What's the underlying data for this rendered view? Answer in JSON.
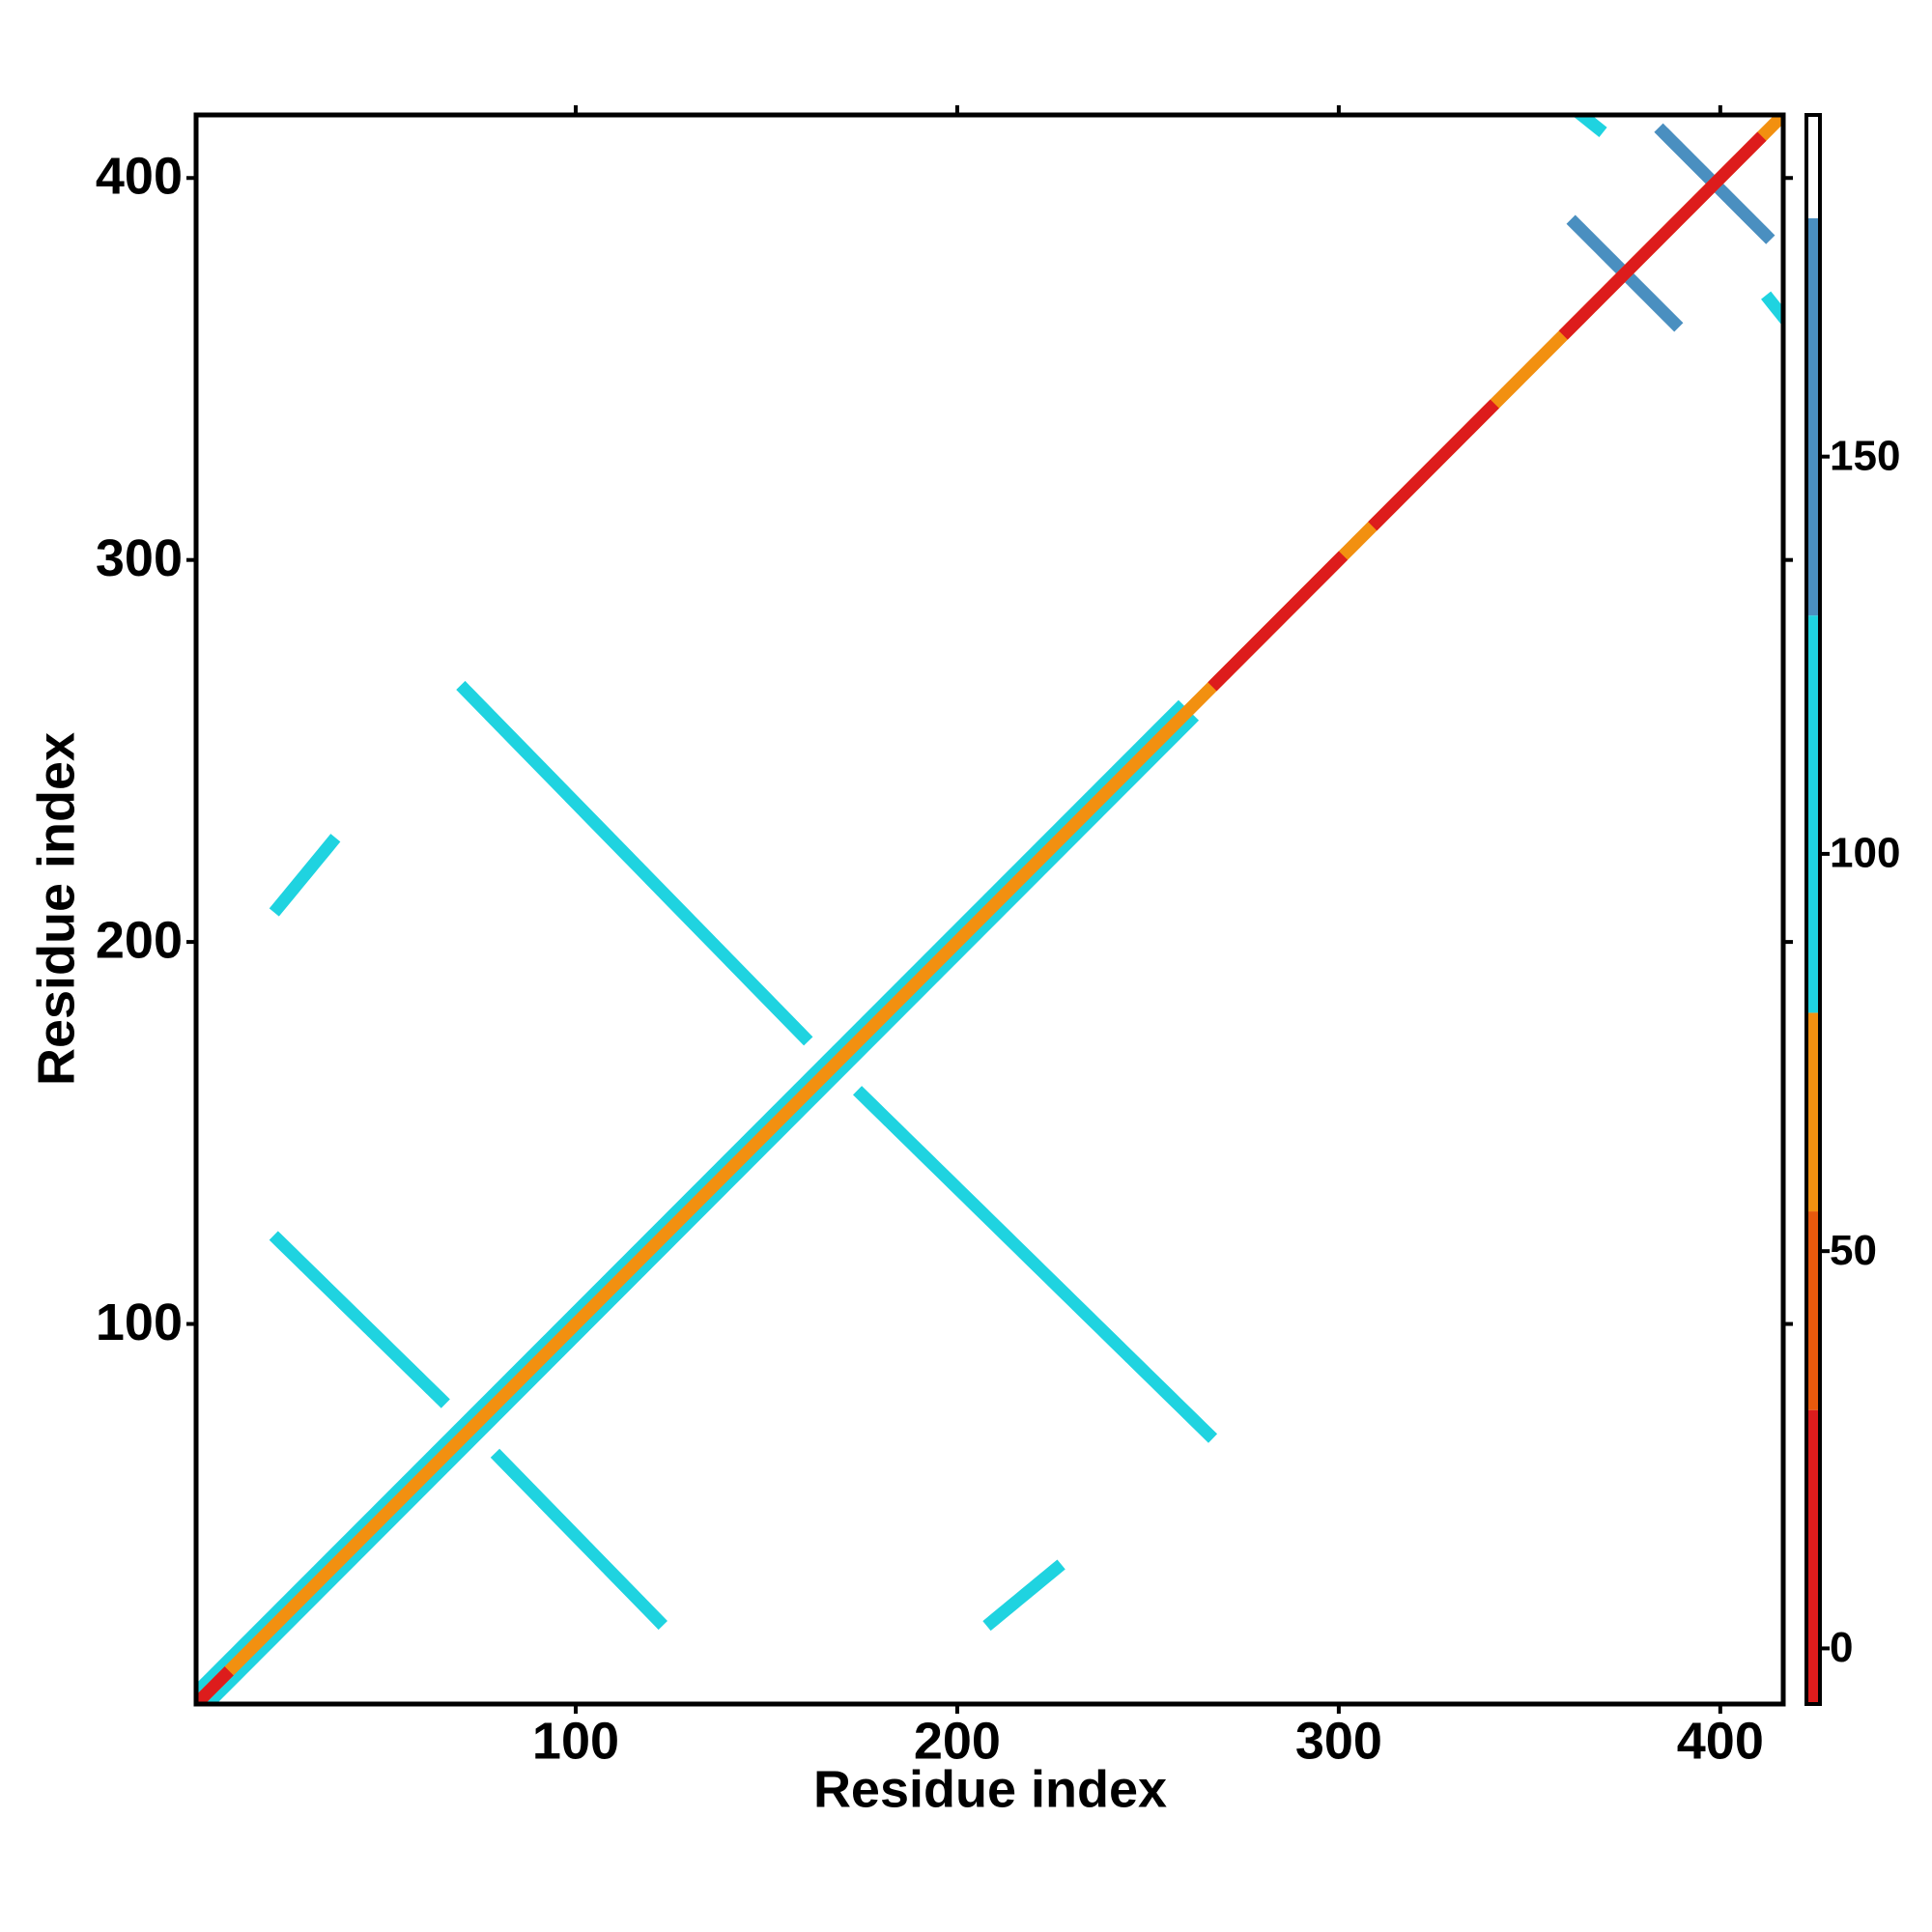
{
  "chart_data": {
    "type": "contact-map",
    "xlabel": "Residue index",
    "ylabel": "Residue index",
    "xlim": [
      0.5,
      416.5
    ],
    "ylim": [
      0.5,
      416.5
    ],
    "xticks": [
      100,
      200,
      300,
      400
    ],
    "yticks": [
      100,
      200,
      300,
      400
    ],
    "contacts": [
      {
        "x": [
          1,
          258
        ],
        "y": [
          4,
          261
        ],
        "value": 100
      },
      {
        "x": [
          4,
          261
        ],
        "y": [
          1,
          258
        ],
        "value": 100
      },
      {
        "x": [
          71,
          160
        ],
        "y": [
          266,
          175
        ],
        "value": 95
      },
      {
        "x": [
          175,
          266
        ],
        "y": [
          160,
          71
        ],
        "value": 95
      },
      {
        "x": [
          22,
          65
        ],
        "y": [
          122,
          80
        ],
        "value": 95
      },
      {
        "x": [
          80,
          122
        ],
        "y": [
          65,
          22
        ],
        "value": 95
      },
      {
        "x": [
          22,
          36
        ],
        "y": [
          209,
          226
        ],
        "value": 110
      },
      {
        "x": [
          209,
          226
        ],
        "y": [
          22,
          36
        ],
        "value": 110
      },
      {
        "x": [
          362,
          388
        ],
        "y": [
          388,
          362
        ],
        "value": 140
      },
      {
        "x": [
          385,
          412
        ],
        "y": [
          412,
          385
        ],
        "value": 140
      },
      {
        "x": [
          363,
          368
        ],
        "y": [
          417,
          413
        ],
        "value": 105
      },
      {
        "x": [
          413,
          417
        ],
        "y": [
          368,
          363
        ],
        "value": 105
      },
      {
        "x": [
          1,
          416
        ],
        "y": [
          1,
          416
        ],
        "value": 60
      },
      {
        "x": [
          1,
          8
        ],
        "y": [
          1,
          8
        ],
        "value": 10
      },
      {
        "x": [
          268,
          300
        ],
        "y": [
          268,
          300
        ],
        "value": 10
      },
      {
        "x": [
          310,
          340
        ],
        "y": [
          310,
          340
        ],
        "value": 10
      },
      {
        "x": [
          360,
          410
        ],
        "y": [
          360,
          410
        ],
        "value": 5
      }
    ],
    "colorbar": {
      "lim": [
        -7,
        193
      ],
      "ticks": [
        0,
        50,
        100,
        150
      ],
      "bounds": [
        -7,
        30,
        55,
        80,
        130,
        180,
        193
      ],
      "colors": [
        "#dd1c1c",
        "#e8590c",
        "#f29010",
        "#1fd3e0",
        "#4a8fc0",
        "#ffffff"
      ]
    }
  }
}
